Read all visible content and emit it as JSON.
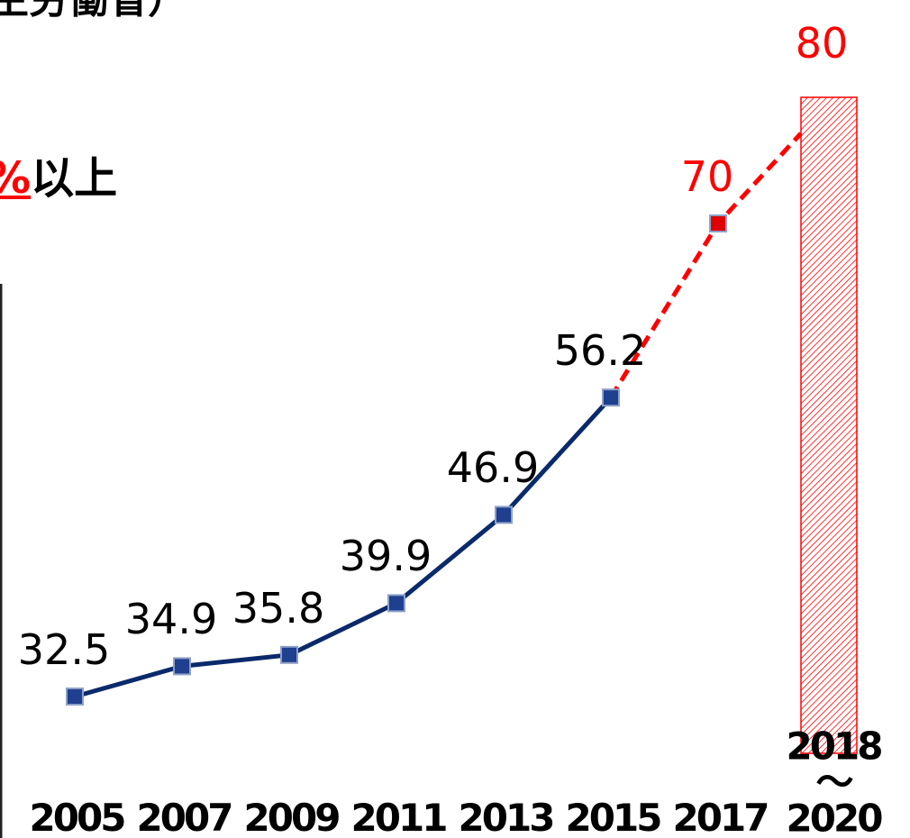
{
  "source_fragment": "生労働省）",
  "headline": {
    "highlight": "%",
    "text": "以上"
  },
  "chart_data": {
    "type": "line",
    "categories": [
      "2005",
      "2007",
      "2009",
      "2011",
      "2013",
      "2015",
      "2017",
      "2018\n～2020"
    ],
    "series": [
      {
        "color": "#0b2a6b",
        "values": [
          32.5,
          34.9,
          35.8,
          39.9,
          46.9,
          56.2,
          null,
          null
        ]
      },
      {
        "color": "#ff0000",
        "dashed": true,
        "values": [
          null,
          null,
          null,
          null,
          null,
          null,
          70,
          null
        ]
      }
    ],
    "bar": {
      "category": 7,
      "value": 80,
      "color": "#ff0000",
      "hatched": true
    },
    "ylim": [
      28,
      81
    ]
  }
}
